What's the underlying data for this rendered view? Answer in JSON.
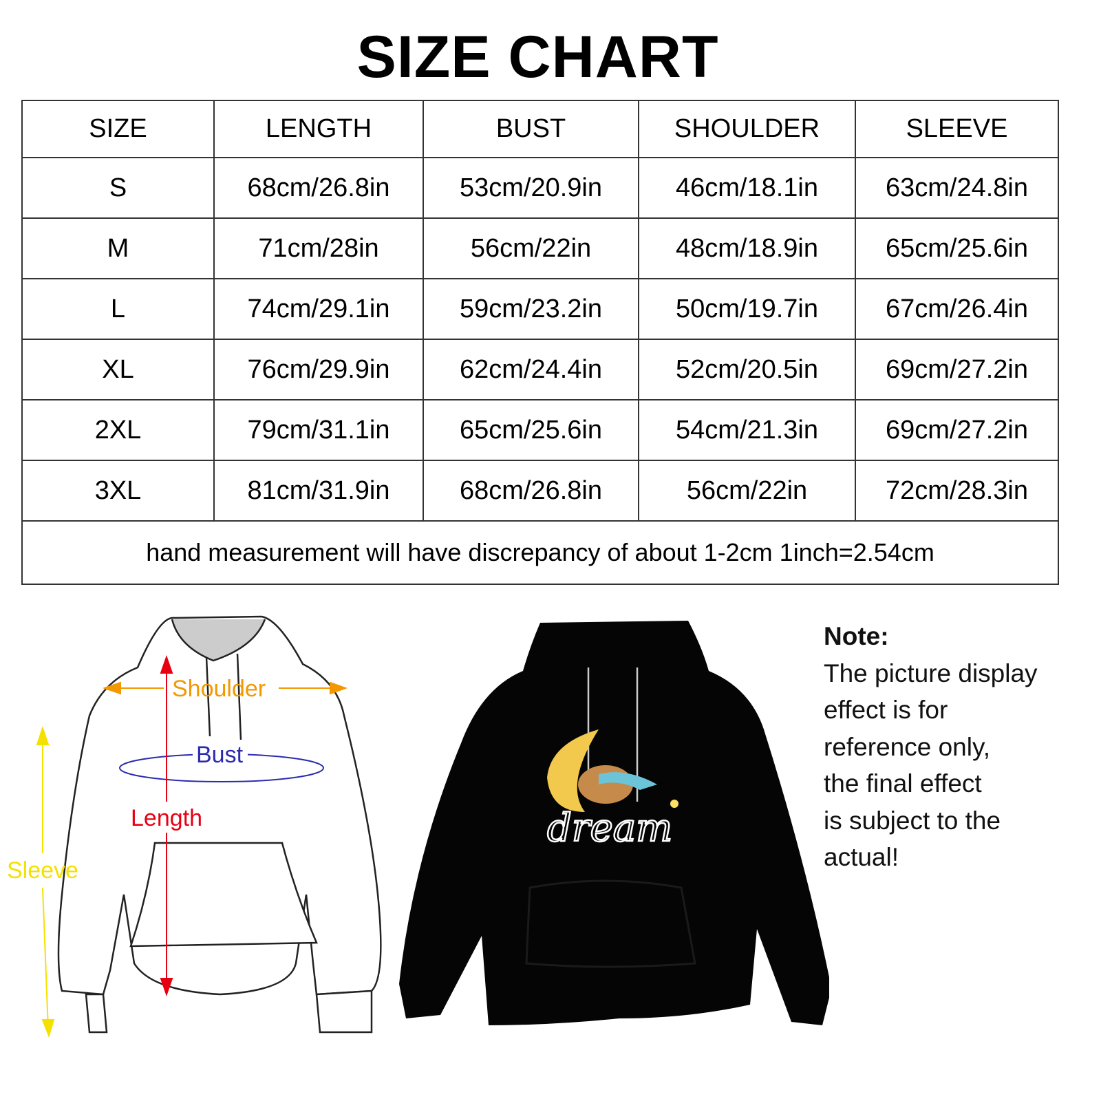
{
  "title": "SIZE CHART",
  "table": {
    "headers": [
      "SIZE",
      "LENGTH",
      "BUST",
      "SHOULDER",
      "SLEEVE"
    ],
    "rows": [
      [
        "S",
        "68cm/26.8in",
        "53cm/20.9in",
        "46cm/18.1in",
        "63cm/24.8in"
      ],
      [
        "M",
        "71cm/28in",
        "56cm/22in",
        "48cm/18.9in",
        "65cm/25.6in"
      ],
      [
        "L",
        "74cm/29.1in",
        "59cm/23.2in",
        "50cm/19.7in",
        "67cm/26.4in"
      ],
      [
        "XL",
        "76cm/29.9in",
        "62cm/24.4in",
        "52cm/20.5in",
        "69cm/27.2in"
      ],
      [
        "2XL",
        "79cm/31.1in",
        "65cm/25.6in",
        "54cm/21.3in",
        "69cm/27.2in"
      ],
      [
        "3XL",
        "81cm/31.9in",
        "68cm/26.8in",
        "56cm/22in",
        "72cm/28.3in"
      ]
    ],
    "footnote": "hand measurement will have discrepancy of about 1-2cm 1inch=2.54cm"
  },
  "diagram": {
    "labels": {
      "shoulder": "Shoulder",
      "bust": "Bust",
      "length": "Length",
      "sleeve": "Sleeve"
    },
    "colors": {
      "shoulder": "#f39800",
      "bust": "#2b2bb0",
      "length": "#e60012",
      "sleeve": "#f5e100"
    }
  },
  "product": {
    "print_text": "dream",
    "color": "#000000"
  },
  "note": {
    "title": "Note:",
    "lines": [
      "The picture display",
      "effect is for",
      "reference only,",
      "the final effect",
      "is subject to the",
      "actual!"
    ]
  }
}
